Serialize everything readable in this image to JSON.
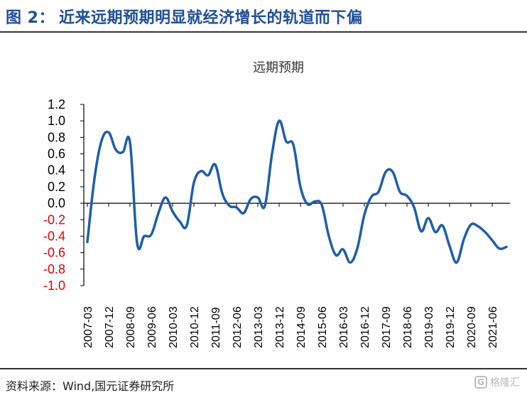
{
  "figure": {
    "label": "图 2：",
    "title": "近来远期预期明显就经济增长的轨道而下偏",
    "source": "资料来源：Wind,国元证券研究所",
    "watermark": "格隆汇",
    "watermark_icon": "g-logo-icon",
    "colors": {
      "header": "#1f4e96",
      "line": "#1f5ea8",
      "negative_tick": "#e00000",
      "positive_tick": "#000000"
    }
  },
  "chart_data": {
    "type": "line",
    "title": "远期预期",
    "xlabel": "",
    "ylabel": "",
    "ylim": [
      -1.0,
      1.2
    ],
    "yticks": [
      1.2,
      1.0,
      0.8,
      0.6,
      0.4,
      0.2,
      0.0,
      -0.2,
      -0.4,
      -0.6,
      -0.8,
      -1.0
    ],
    "ytick_labels": [
      "1.2",
      "1.0",
      "0.8",
      "0.6",
      "0.4",
      "0.2",
      "0.0",
      "-0.2",
      "-0.4",
      "-0.6",
      "-0.8",
      "-1.0"
    ],
    "xtick_labels": [
      "2007-03",
      "2007-12",
      "2008-09",
      "2009-06",
      "2010-03",
      "2010-12",
      "2011-09",
      "2012-06",
      "2013-03",
      "2013-12",
      "2014-09",
      "2015-06",
      "2016-03",
      "2016-12",
      "2017-09",
      "2018-06",
      "2019-03",
      "2019-12",
      "2020-09",
      "2021-06"
    ],
    "grid": false,
    "legend": "none",
    "series": [
      {
        "x": [
          "2007-03",
          "2007-06",
          "2007-09",
          "2007-12",
          "2008-03",
          "2008-06",
          "2008-09",
          "2008-12",
          "2009-03",
          "2009-06",
          "2009-09",
          "2009-12",
          "2010-03",
          "2010-06",
          "2010-09",
          "2010-12",
          "2011-03",
          "2011-06",
          "2011-09",
          "2011-12",
          "2012-03",
          "2012-06",
          "2012-09",
          "2012-12",
          "2013-03",
          "2013-06",
          "2013-09",
          "2013-12",
          "2014-03",
          "2014-06",
          "2014-09",
          "2014-12",
          "2015-03",
          "2015-06",
          "2015-09",
          "2015-12",
          "2016-03",
          "2016-06",
          "2016-09",
          "2016-12",
          "2017-03",
          "2017-06",
          "2017-09",
          "2017-12",
          "2018-03",
          "2018-06",
          "2018-09",
          "2018-12",
          "2019-03",
          "2019-06",
          "2019-09",
          "2019-12",
          "2020-03",
          "2020-06",
          "2020-09",
          "2020-12",
          "2021-03",
          "2021-06",
          "2021-09",
          "2021-12"
        ],
        "values": [
          -0.47,
          0.3,
          0.76,
          0.86,
          0.65,
          0.62,
          0.74,
          -0.48,
          -0.4,
          -0.38,
          -0.12,
          0.07,
          -0.1,
          -0.22,
          -0.27,
          0.25,
          0.39,
          0.34,
          0.47,
          0.12,
          -0.03,
          -0.05,
          -0.12,
          0.05,
          0.07,
          -0.03,
          0.6,
          1.0,
          0.75,
          0.71,
          0.2,
          -0.01,
          0.02,
          -0.02,
          -0.4,
          -0.63,
          -0.56,
          -0.72,
          -0.55,
          -0.14,
          0.08,
          0.14,
          0.38,
          0.38,
          0.14,
          0.09,
          -0.05,
          -0.34,
          -0.18,
          -0.35,
          -0.27,
          -0.52,
          -0.72,
          -0.44,
          -0.26,
          -0.28,
          -0.35,
          -0.45,
          -0.55,
          -0.53
        ]
      }
    ]
  }
}
